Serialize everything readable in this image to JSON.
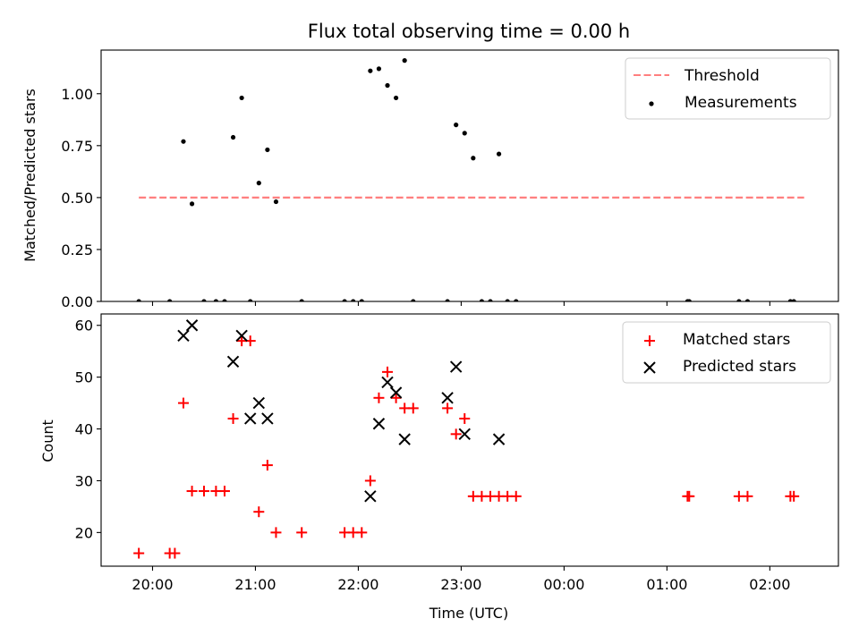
{
  "chart_data": [
    {
      "type": "scatter",
      "title": "Flux total observing time = 0.00 h",
      "xlabel": "",
      "ylabel": "Matched/Predicted stars",
      "xlim": [
        "19:30",
        "02:40"
      ],
      "ylim": [
        0,
        1.21
      ],
      "yticks": [
        0.0,
        0.25,
        0.5,
        0.75,
        1.0
      ],
      "ytick_labels": [
        "0.00",
        "0.25",
        "0.50",
        "0.75",
        "1.00"
      ],
      "grid": false,
      "legend": "top-right",
      "series": [
        {
          "name": "Threshold",
          "kind": "dashed-line",
          "color": "#ff7f7f",
          "x": [
            "19:52",
            "02:20"
          ],
          "y": [
            0.5,
            0.5
          ]
        },
        {
          "name": "Measurements",
          "kind": "dots",
          "color": "#000000",
          "x": [
            "19:52",
            "20:10",
            "20:18",
            "20:23",
            "20:30",
            "20:37",
            "20:42",
            "20:47",
            "20:52",
            "20:57",
            "21:02",
            "21:07",
            "21:12",
            "21:27",
            "21:52",
            "21:57",
            "22:02",
            "22:07",
            "22:12",
            "22:17",
            "22:22",
            "22:27",
            "22:32",
            "22:52",
            "22:57",
            "23:02",
            "23:07",
            "23:12",
            "23:17",
            "23:22",
            "23:27",
            "23:32",
            "01:12",
            "01:13",
            "01:42",
            "01:47",
            "02:12",
            "02:14"
          ],
          "y": [
            0,
            0,
            0.77,
            0.47,
            0,
            0,
            0,
            0.79,
            0.98,
            0,
            0.57,
            0.73,
            0.48,
            0,
            0,
            0,
            0,
            1.11,
            1.12,
            1.04,
            0.98,
            1.16,
            0,
            0,
            0.85,
            0.81,
            0.69,
            0,
            0,
            0.71,
            0,
            0,
            0,
            0,
            0,
            0,
            0,
            0
          ]
        }
      ]
    },
    {
      "type": "scatter",
      "title": "",
      "xlabel": "Time (UTC)",
      "ylabel": "Count",
      "xlim": [
        "19:30",
        "02:40"
      ],
      "ylim": [
        13.5,
        62.2
      ],
      "yticks": [
        20,
        30,
        40,
        50,
        60
      ],
      "xtick_labels": [
        "20:00",
        "21:00",
        "22:00",
        "23:00",
        "00:00",
        "01:00",
        "02:00"
      ],
      "grid": false,
      "legend": "top-right",
      "series": [
        {
          "name": "Matched stars",
          "marker": "plus",
          "color": "#ff0000",
          "x": [
            "19:52",
            "20:10",
            "20:13",
            "20:18",
            "20:23",
            "20:30",
            "20:37",
            "20:42",
            "20:47",
            "20:52",
            "20:57",
            "21:02",
            "21:07",
            "21:12",
            "21:27",
            "21:52",
            "21:57",
            "22:02",
            "22:07",
            "22:12",
            "22:17",
            "22:22",
            "22:27",
            "22:32",
            "22:52",
            "22:57",
            "23:02",
            "23:07",
            "23:12",
            "23:17",
            "23:22",
            "23:27",
            "23:32",
            "01:12",
            "01:13",
            "01:42",
            "01:47",
            "02:12",
            "02:14"
          ],
          "y": [
            16,
            16,
            16,
            45,
            28,
            28,
            28,
            28,
            42,
            57,
            57,
            24,
            33,
            20,
            20,
            20,
            20,
            20,
            30,
            46,
            51,
            46,
            44,
            44,
            44,
            39,
            42,
            27,
            27,
            27,
            27,
            27,
            27,
            27,
            27,
            27,
            27,
            27,
            27
          ]
        },
        {
          "name": "Predicted stars",
          "marker": "x",
          "color": "#000000",
          "x": [
            "20:18",
            "20:23",
            "20:47",
            "20:52",
            "20:57",
            "21:02",
            "21:07",
            "22:07",
            "22:12",
            "22:17",
            "22:22",
            "22:27",
            "22:52",
            "22:57",
            "23:02",
            "23:22"
          ],
          "y": [
            58,
            60,
            53,
            58,
            42,
            45,
            42,
            27,
            41,
            49,
            47,
            38,
            46,
            52,
            39,
            38
          ]
        }
      ]
    }
  ]
}
